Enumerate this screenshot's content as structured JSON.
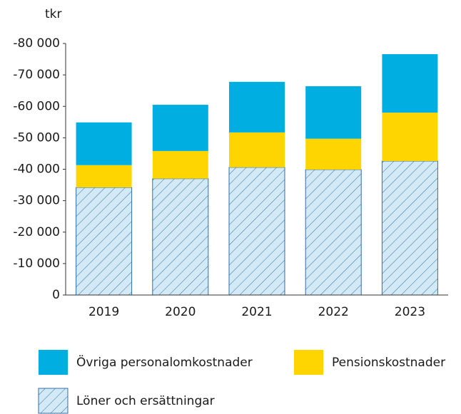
{
  "chart_data": {
    "type": "bar",
    "stacked": true,
    "y_label": "tkr",
    "categories": [
      "2019",
      "2020",
      "2021",
      "2022",
      "2023"
    ],
    "series": [
      {
        "name": "Övriga personalomkostnader",
        "color": "#00aee2",
        "values": [
          -13600,
          -14700,
          -16100,
          -16700,
          -18600
        ]
      },
      {
        "name": "Pensionskostnader",
        "color": "#ffd500",
        "values": [
          -7100,
          -8800,
          -11100,
          -9800,
          -15400
        ]
      },
      {
        "name": "Löner och ersättningar",
        "color": "#d3e9f5",
        "pattern": "hatch",
        "values": [
          -34200,
          -37000,
          -40600,
          -39900,
          -42600
        ]
      }
    ],
    "ylim": [
      0,
      -80000
    ],
    "yticks": [
      0,
      {
        "value": -10000,
        "label": "-10 000"
      },
      {
        "value": -20000,
        "label": "-20 000"
      },
      {
        "value": -30000,
        "label": "-30 000"
      },
      {
        "value": -40000,
        "label": "-40 000"
      },
      {
        "value": -50000,
        "label": "-50 000"
      },
      {
        "value": -60000,
        "label": "-60 000"
      },
      {
        "value": -70000,
        "label": "-70 000"
      },
      {
        "value": -80000,
        "label": "-80 000"
      }
    ],
    "grid": false
  }
}
